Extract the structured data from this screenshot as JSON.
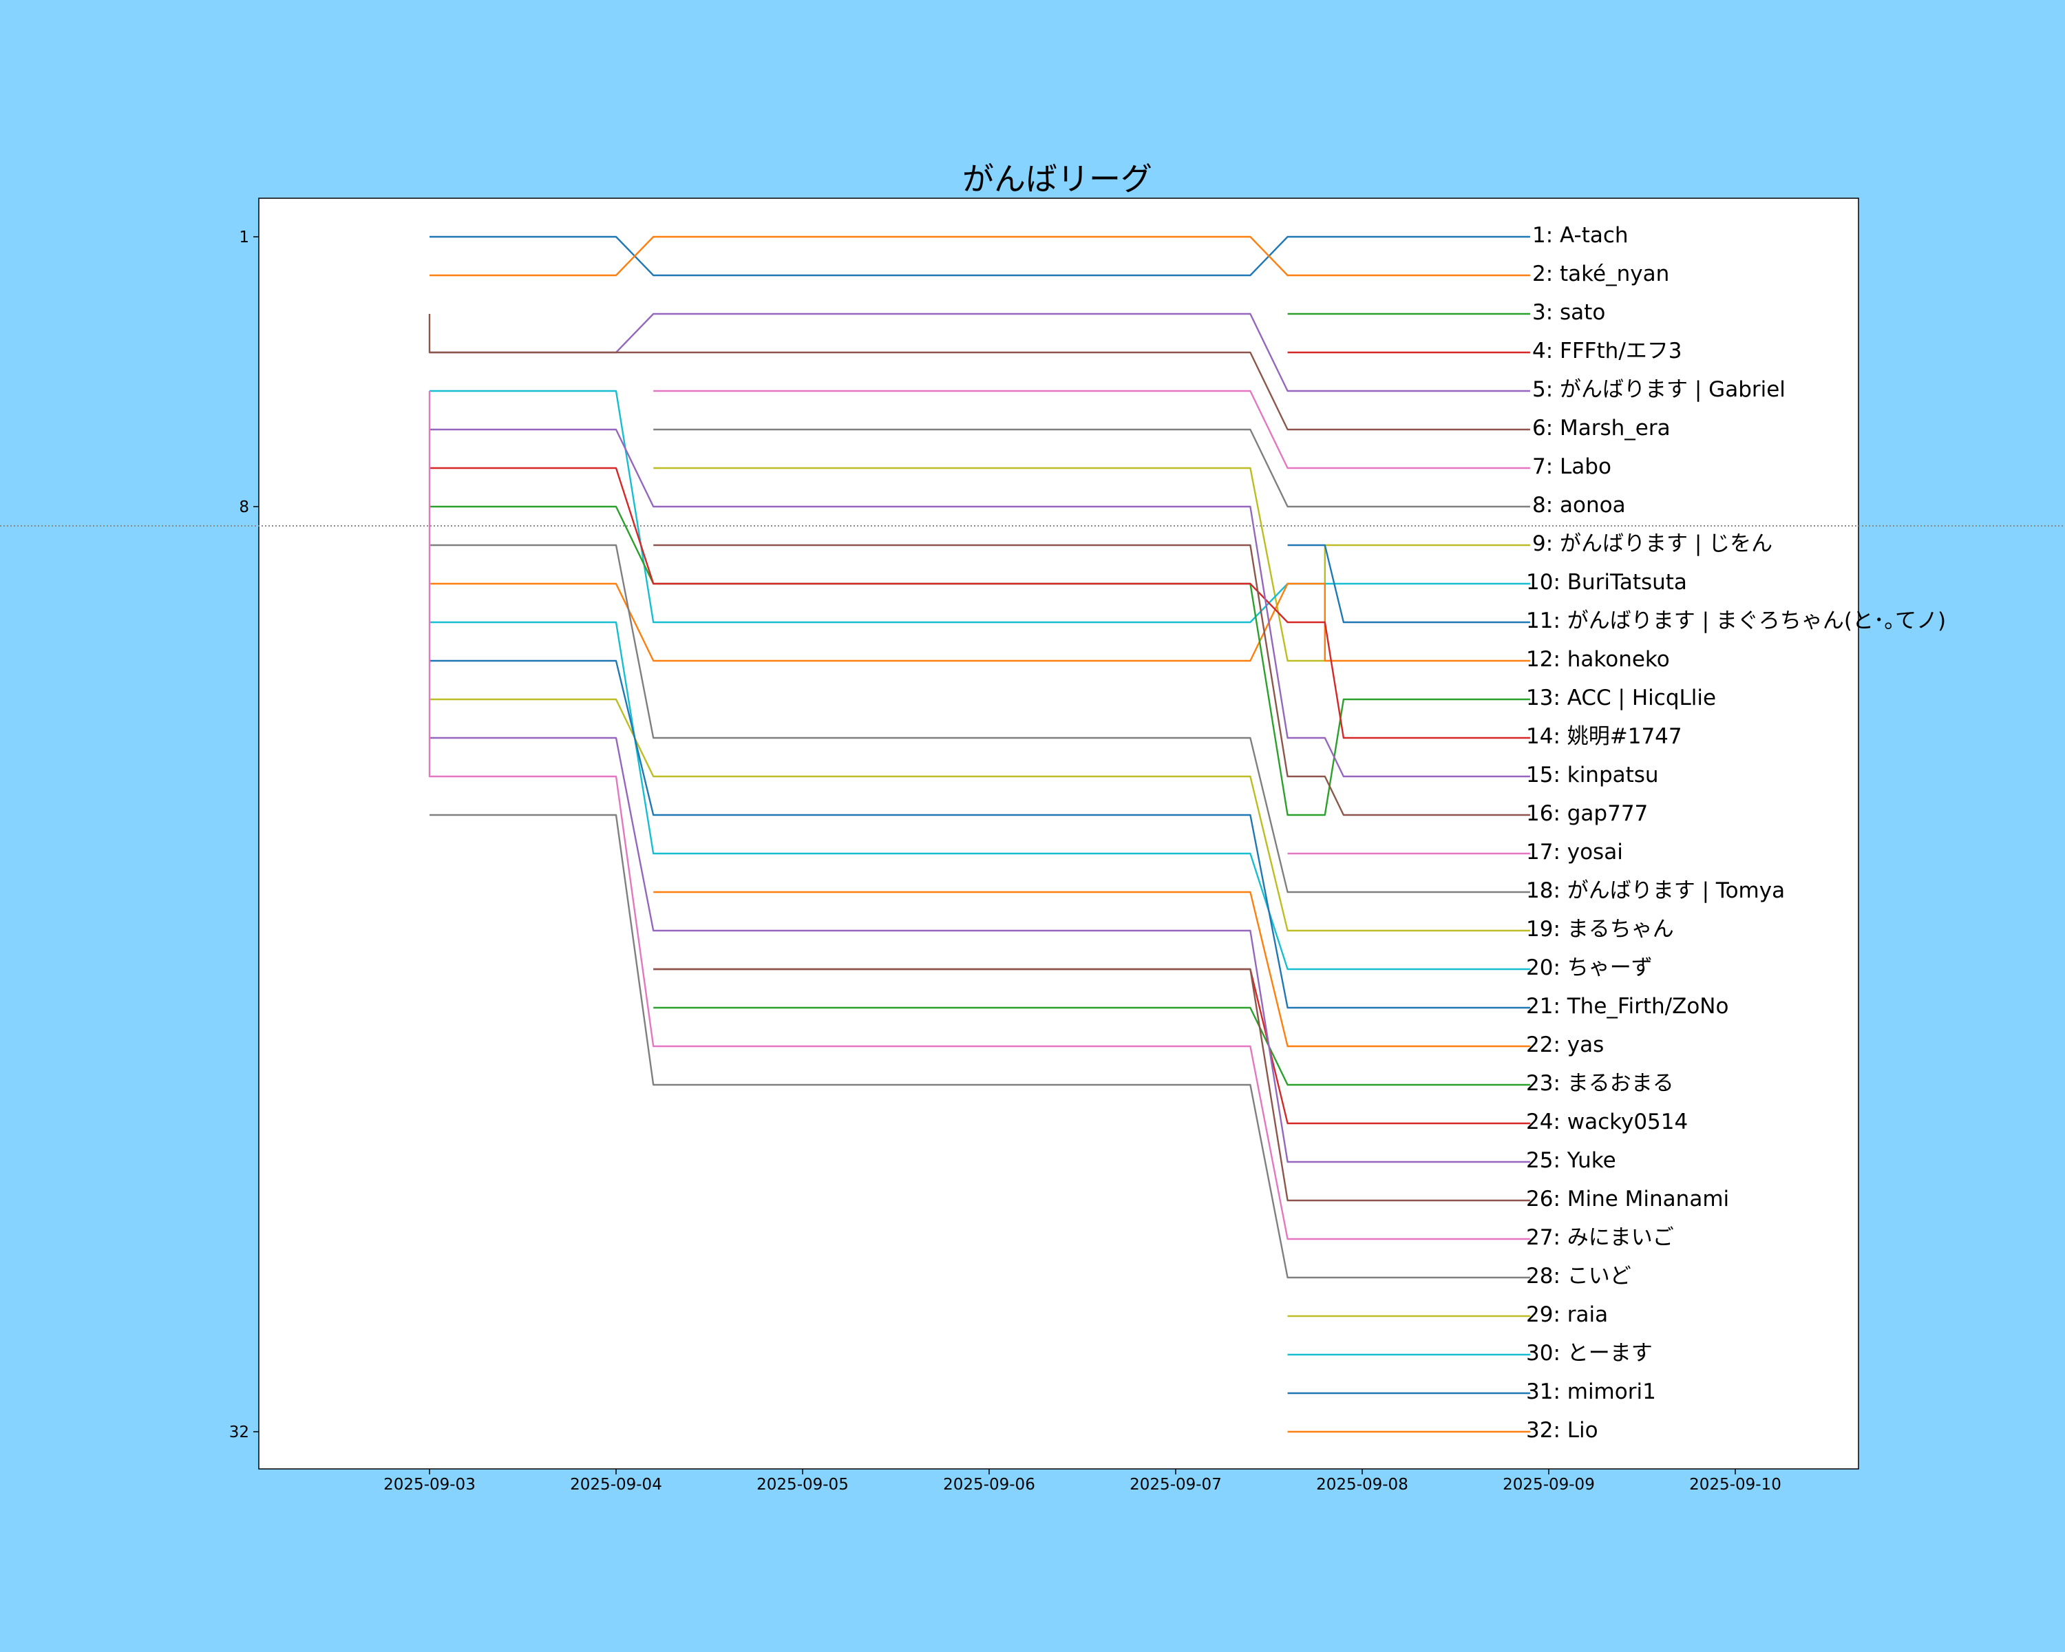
{
  "chart_data": {
    "type": "line",
    "title": "がんばリーグ",
    "xlabel": "",
    "ylabel": "",
    "x_ticks": [
      "2025-09-03",
      "2025-09-04",
      "2025-09-05",
      "2025-09-06",
      "2025-09-07",
      "2025-09-08",
      "2025-09-09",
      "2025-09-10"
    ],
    "y_ticks": [
      1,
      8,
      32
    ],
    "y_axis": "rank, inverted (1 at top)",
    "ylim": [
      33,
      0
    ],
    "xlim": [
      "2025-09-02",
      "2025-09-10.6"
    ],
    "grid": false,
    "cutoff_line_rank": 8.5,
    "legend": "labels at line ends",
    "colors": [
      "#1f77b4",
      "#ff7f0e",
      "#2ca02c",
      "#d62728",
      "#9467bd",
      "#8c564b",
      "#e377c2",
      "#7f7f7f",
      "#bcbd22",
      "#17becf"
    ],
    "series": [
      {
        "name": "A-tach",
        "final_rank": 1,
        "points": [
          [
            "09-03",
            1
          ],
          [
            "09-04",
            1
          ],
          [
            "09-04.2",
            2
          ],
          [
            "09-07.4",
            2
          ],
          [
            "09-07.6",
            1
          ],
          [
            "09-08.9",
            1
          ]
        ]
      },
      {
        "name": "také_nyan",
        "final_rank": 2,
        "points": [
          [
            "09-03",
            2
          ],
          [
            "09-04",
            2
          ],
          [
            "09-04.2",
            1
          ],
          [
            "09-07.4",
            1
          ],
          [
            "09-07.6",
            2
          ],
          [
            "09-08.9",
            2
          ]
        ]
      },
      {
        "name": "sato",
        "final_rank": 3,
        "points": [
          [
            "09-07.6",
            3
          ],
          [
            "09-08.9",
            3
          ]
        ]
      },
      {
        "name": "FFFth/エフ3",
        "final_rank": 4,
        "points": [
          [
            "09-07.6",
            4
          ],
          [
            "09-08.9",
            4
          ]
        ]
      },
      {
        "name": "がんばります | Gabriel",
        "final_rank": 5,
        "points": [
          [
            "09-03",
            4
          ],
          [
            "09-04",
            4
          ],
          [
            "09-04.2",
            3
          ],
          [
            "09-07.4",
            3
          ],
          [
            "09-07.6",
            5
          ],
          [
            "09-08.9",
            5
          ]
        ]
      },
      {
        "name": "Marsh_era",
        "final_rank": 6,
        "points": [
          [
            "09-03",
            3
          ],
          [
            "09-03",
            4
          ],
          [
            "09-04",
            4
          ],
          [
            "09-07.4",
            4
          ],
          [
            "09-07.6",
            6
          ],
          [
            "09-08.9",
            6
          ]
        ]
      },
      {
        "name": "Labo",
        "final_rank": 7,
        "points": [
          [
            "09-04.2",
            5
          ],
          [
            "09-07.4",
            5
          ],
          [
            "09-07.6",
            7
          ],
          [
            "09-08.9",
            7
          ]
        ]
      },
      {
        "name": "aonoa",
        "final_rank": 8,
        "points": [
          [
            "09-04.2",
            6
          ],
          [
            "09-07.4",
            6
          ],
          [
            "09-07.6",
            8
          ],
          [
            "09-08.9",
            8
          ]
        ]
      },
      {
        "name": "がんばります | じをん",
        "final_rank": 9,
        "points": [
          [
            "09-04.2",
            7
          ],
          [
            "09-07.4",
            7
          ],
          [
            "09-07.6",
            12
          ],
          [
            "09-07.8",
            12
          ],
          [
            "09-07.8",
            9
          ],
          [
            "09-08.9",
            9
          ]
        ]
      },
      {
        "name": "BuriTatsuta",
        "final_rank": 10,
        "points": [
          [
            "09-03",
            5
          ],
          [
            "09-04",
            5
          ],
          [
            "09-04.2",
            11
          ],
          [
            "09-07.4",
            11
          ],
          [
            "09-07.6",
            10
          ],
          [
            "09-07.8",
            10
          ],
          [
            "09-07.9",
            10
          ],
          [
            "09-08.9",
            10
          ]
        ]
      },
      {
        "name": "がんばります | まぐろちゃん(と･｡てノ)",
        "final_rank": 11,
        "points": [
          [
            "09-07.6",
            9
          ],
          [
            "09-07.8",
            9
          ],
          [
            "09-07.9",
            11
          ],
          [
            "09-08.9",
            11
          ]
        ]
      },
      {
        "name": "hakoneko",
        "final_rank": 12,
        "points": [
          [
            "09-03",
            10
          ],
          [
            "09-04",
            10
          ],
          [
            "09-04.2",
            12
          ],
          [
            "09-07.4",
            12
          ],
          [
            "09-07.6",
            10
          ],
          [
            "09-07.8",
            10
          ],
          [
            "09-07.8",
            12
          ],
          [
            "09-08.9",
            12
          ]
        ]
      },
      {
        "name": "ACC | HicqLlie",
        "final_rank": 13,
        "points": [
          [
            "09-03",
            8
          ],
          [
            "09-04",
            8
          ],
          [
            "09-04.2",
            10
          ],
          [
            "09-07.4",
            10
          ],
          [
            "09-07.6",
            16
          ],
          [
            "09-07.8",
            16
          ],
          [
            "09-07.9",
            13
          ],
          [
            "09-08.9",
            13
          ]
        ]
      },
      {
        "name": "姚明#1747",
        "final_rank": 14,
        "points": [
          [
            "09-03",
            7
          ],
          [
            "09-04",
            7
          ],
          [
            "09-04.2",
            10
          ],
          [
            "09-07.4",
            10
          ],
          [
            "09-07.6",
            11
          ],
          [
            "09-07.8",
            11
          ],
          [
            "09-07.9",
            14
          ],
          [
            "09-08.9",
            14
          ]
        ]
      },
      {
        "name": "kinpatsu",
        "final_rank": 15,
        "points": [
          [
            "09-03",
            6
          ],
          [
            "09-04",
            6
          ],
          [
            "09-04.2",
            8
          ],
          [
            "09-07.4",
            8
          ],
          [
            "09-07.6",
            14
          ],
          [
            "09-07.8",
            14
          ],
          [
            "09-07.9",
            15
          ],
          [
            "09-08.9",
            15
          ]
        ]
      },
      {
        "name": "gap777",
        "final_rank": 16,
        "points": [
          [
            "09-04.2",
            9
          ],
          [
            "09-07.4",
            9
          ],
          [
            "09-07.6",
            15
          ],
          [
            "09-07.8",
            15
          ],
          [
            "09-07.9",
            16
          ],
          [
            "09-08.9",
            16
          ]
        ]
      },
      {
        "name": "yosai",
        "final_rank": 17,
        "points": [
          [
            "09-07.6",
            17
          ],
          [
            "09-08.9",
            17
          ]
        ]
      },
      {
        "name": "がんばります | Tomya",
        "final_rank": 18,
        "points": [
          [
            "09-03",
            9
          ],
          [
            "09-04",
            9
          ],
          [
            "09-04.2",
            14
          ],
          [
            "09-07.4",
            14
          ],
          [
            "09-07.6",
            18
          ],
          [
            "09-08.9",
            18
          ]
        ]
      },
      {
        "name": "まるちゃん",
        "final_rank": 19,
        "points": [
          [
            "09-03",
            13
          ],
          [
            "09-04",
            13
          ],
          [
            "09-04.2",
            15
          ],
          [
            "09-07.4",
            15
          ],
          [
            "09-07.6",
            19
          ],
          [
            "09-08.9",
            19
          ]
        ]
      },
      {
        "name": "ちゃーず",
        "final_rank": 20,
        "points": [
          [
            "09-03",
            11
          ],
          [
            "09-04",
            11
          ],
          [
            "09-04.2",
            17
          ],
          [
            "09-07.4",
            17
          ],
          [
            "09-07.6",
            20
          ],
          [
            "09-08.9",
            20
          ]
        ]
      },
      {
        "name": "The_Firth/ZoNo",
        "final_rank": 21,
        "points": [
          [
            "09-03",
            12
          ],
          [
            "09-04",
            12
          ],
          [
            "09-04.2",
            16
          ],
          [
            "09-07.4",
            16
          ],
          [
            "09-07.6",
            21
          ],
          [
            "09-08.9",
            21
          ]
        ]
      },
      {
        "name": "yas",
        "final_rank": 22,
        "points": [
          [
            "09-04.2",
            18
          ],
          [
            "09-07.4",
            18
          ],
          [
            "09-07.6",
            22
          ],
          [
            "09-08.9",
            22
          ]
        ]
      },
      {
        "name": "まるおまる",
        "final_rank": 23,
        "points": [
          [
            "09-04.2",
            21
          ],
          [
            "09-07.4",
            21
          ],
          [
            "09-07.6",
            23
          ],
          [
            "09-08.9",
            23
          ]
        ]
      },
      {
        "name": "wacky0514",
        "final_rank": 24,
        "points": [
          [
            "09-04.2",
            20
          ],
          [
            "09-07.4",
            20
          ],
          [
            "09-07.6",
            24
          ],
          [
            "09-08.9",
            24
          ]
        ]
      },
      {
        "name": "Yuke",
        "final_rank": 25,
        "points": [
          [
            "09-03",
            14
          ],
          [
            "09-04",
            14
          ],
          [
            "09-04.2",
            19
          ],
          [
            "09-07.4",
            19
          ],
          [
            "09-07.6",
            25
          ],
          [
            "09-08.9",
            25
          ]
        ]
      },
      {
        "name": "Mine Minanami",
        "final_rank": 26,
        "points": [
          [
            "09-04.2",
            20
          ],
          [
            "09-07.4",
            20
          ],
          [
            "09-07.6",
            26
          ],
          [
            "09-08.9",
            26
          ]
        ]
      },
      {
        "name": "みにまいご",
        "final_rank": 27,
        "points": [
          [
            "09-03",
            5
          ],
          [
            "09-03",
            15
          ],
          [
            "09-04",
            15
          ],
          [
            "09-04.2",
            22
          ],
          [
            "09-07.4",
            22
          ],
          [
            "09-07.6",
            27
          ],
          [
            "09-08.9",
            27
          ]
        ]
      },
      {
        "name": "こいど",
        "final_rank": 28,
        "points": [
          [
            "09-03",
            16
          ],
          [
            "09-04",
            16
          ],
          [
            "09-04.2",
            23
          ],
          [
            "09-07.4",
            23
          ],
          [
            "09-07.6",
            28
          ],
          [
            "09-08.9",
            28
          ]
        ]
      },
      {
        "name": "raia",
        "final_rank": 29,
        "points": [
          [
            "09-07.6",
            29
          ],
          [
            "09-08.9",
            29
          ]
        ]
      },
      {
        "name": "とーます",
        "final_rank": 30,
        "points": [
          [
            "09-07.6",
            30
          ],
          [
            "09-08.9",
            30
          ]
        ]
      },
      {
        "name": "mimori1",
        "final_rank": 31,
        "points": [
          [
            "09-07.6",
            31
          ],
          [
            "09-08.9",
            31
          ]
        ]
      },
      {
        "name": "Lio",
        "final_rank": 32,
        "points": [
          [
            "09-07.6",
            32
          ],
          [
            "09-08.9",
            32
          ]
        ]
      }
    ]
  }
}
